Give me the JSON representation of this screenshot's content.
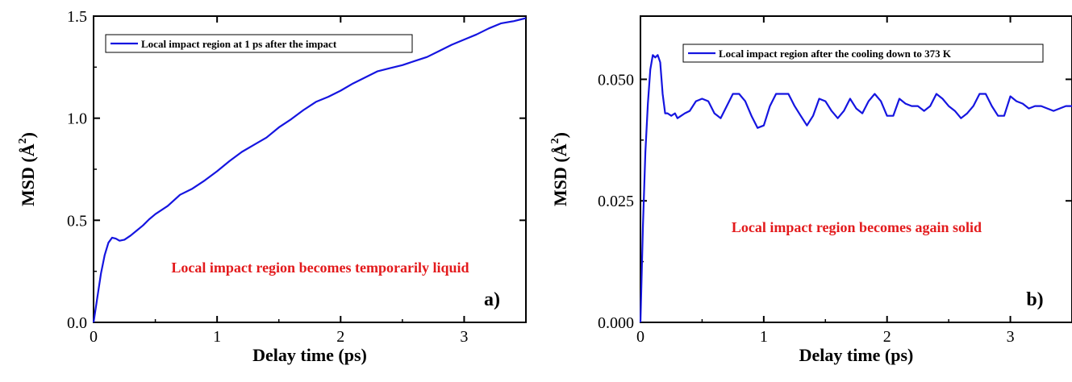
{
  "colors": {
    "series": "#1515e0",
    "annotation": "#e31a1c",
    "axis": "#000000"
  },
  "chart_data": [
    {
      "id": "a",
      "type": "line",
      "xlabel": "Delay time (ps)",
      "ylabel_main": "MSD (",
      "ylabel_unit": "Å",
      "ylabel_exp": "2",
      "ylabel_close": ")",
      "xlim": [
        0,
        3.5
      ],
      "ylim": [
        0,
        1.5
      ],
      "xticks": [
        0,
        1,
        2,
        3
      ],
      "xtick_labels": [
        "0",
        "1",
        "2",
        "3"
      ],
      "yticks": [
        0,
        0.5,
        1.0,
        1.5
      ],
      "ytick_labels": [
        "0.0",
        "0.5",
        "1.0",
        "1.5"
      ],
      "legend_position": "top-left",
      "annotation": "Local impact region becomes temporarily liquid",
      "panel_label": "a)",
      "series": [
        {
          "name": "Local impact region at 1 ps after the impact",
          "x": [
            0,
            0.03,
            0.06,
            0.09,
            0.12,
            0.15,
            0.18,
            0.21,
            0.25,
            0.3,
            0.35,
            0.4,
            0.45,
            0.5,
            0.6,
            0.7,
            0.8,
            0.9,
            1.0,
            1.1,
            1.2,
            1.3,
            1.4,
            1.5,
            1.6,
            1.7,
            1.8,
            1.9,
            2.0,
            2.1,
            2.2,
            2.3,
            2.4,
            2.5,
            2.6,
            2.7,
            2.8,
            2.9,
            3.0,
            3.1,
            3.2,
            3.3,
            3.4,
            3.5
          ],
          "y": [
            0,
            0.12,
            0.24,
            0.33,
            0.39,
            0.415,
            0.41,
            0.4,
            0.405,
            0.425,
            0.45,
            0.475,
            0.505,
            0.53,
            0.57,
            0.625,
            0.655,
            0.695,
            0.74,
            0.79,
            0.835,
            0.87,
            0.905,
            0.955,
            0.995,
            1.04,
            1.08,
            1.105,
            1.135,
            1.17,
            1.2,
            1.23,
            1.245,
            1.26,
            1.28,
            1.3,
            1.33,
            1.36,
            1.385,
            1.41,
            1.44,
            1.465,
            1.475,
            1.49
          ]
        }
      ]
    },
    {
      "id": "b",
      "type": "line",
      "xlabel": "Delay time (ps)",
      "ylabel_main": "MSD (",
      "ylabel_unit": "Å",
      "ylabel_exp": "2",
      "ylabel_close": ")",
      "xlim": [
        0,
        3.5
      ],
      "ylim": [
        0,
        0.063
      ],
      "xticks": [
        0,
        1,
        2,
        3
      ],
      "xtick_labels": [
        "0",
        "1",
        "2",
        "3"
      ],
      "yticks": [
        0,
        0.025,
        0.05
      ],
      "ytick_labels": [
        "0.000",
        "0.025",
        "0.050"
      ],
      "legend_position": "top-right",
      "annotation": "Local impact region becomes again solid",
      "panel_label": "b)",
      "series": [
        {
          "name": "Local impact region after the cooling down to 373 K",
          "x": [
            0,
            0.02,
            0.04,
            0.06,
            0.08,
            0.1,
            0.12,
            0.14,
            0.16,
            0.18,
            0.2,
            0.22,
            0.25,
            0.28,
            0.3,
            0.33,
            0.36,
            0.4,
            0.45,
            0.5,
            0.55,
            0.6,
            0.65,
            0.7,
            0.75,
            0.8,
            0.85,
            0.9,
            0.95,
            1.0,
            1.05,
            1.1,
            1.15,
            1.2,
            1.25,
            1.3,
            1.35,
            1.4,
            1.45,
            1.5,
            1.55,
            1.6,
            1.65,
            1.7,
            1.75,
            1.8,
            1.85,
            1.9,
            1.95,
            2.0,
            2.05,
            2.1,
            2.15,
            2.2,
            2.25,
            2.3,
            2.35,
            2.4,
            2.45,
            2.5,
            2.55,
            2.6,
            2.65,
            2.7,
            2.75,
            2.8,
            2.85,
            2.9,
            2.95,
            3.0,
            3.05,
            3.1,
            3.15,
            3.2,
            3.25,
            3.3,
            3.35,
            3.4,
            3.45,
            3.5
          ],
          "y": [
            0,
            0.02,
            0.035,
            0.045,
            0.052,
            0.055,
            0.0545,
            0.055,
            0.0535,
            0.047,
            0.043,
            0.043,
            0.0425,
            0.043,
            0.042,
            0.0425,
            0.043,
            0.0435,
            0.0455,
            0.046,
            0.0455,
            0.043,
            0.042,
            0.0445,
            0.047,
            0.047,
            0.0455,
            0.0425,
            0.04,
            0.0405,
            0.0445,
            0.047,
            0.047,
            0.047,
            0.0445,
            0.0425,
            0.0405,
            0.0425,
            0.046,
            0.0455,
            0.0435,
            0.042,
            0.0435,
            0.046,
            0.044,
            0.043,
            0.0455,
            0.047,
            0.0455,
            0.0425,
            0.0425,
            0.046,
            0.045,
            0.0445,
            0.0445,
            0.0435,
            0.0445,
            0.047,
            0.046,
            0.0445,
            0.0435,
            0.042,
            0.043,
            0.0445,
            0.047,
            0.047,
            0.0445,
            0.0425,
            0.0425,
            0.0465,
            0.0455,
            0.045,
            0.044,
            0.0445,
            0.0445,
            0.044,
            0.0435,
            0.044,
            0.0445,
            0.0445
          ]
        }
      ]
    }
  ]
}
